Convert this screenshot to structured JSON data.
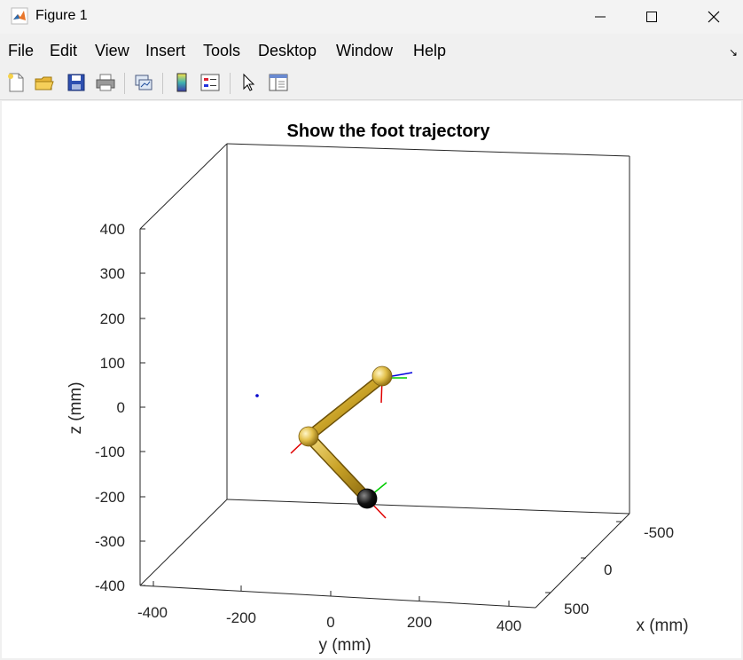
{
  "window": {
    "title": "Figure 1",
    "icon": "matlab-logo-icon",
    "controls": [
      "minimize-icon",
      "maximize-icon",
      "close-icon"
    ]
  },
  "menu": {
    "items": [
      "File",
      "Edit",
      "View",
      "Insert",
      "Tools",
      "Desktop",
      "Window",
      "Help"
    ],
    "overflow_icon": "dock-arrow-icon"
  },
  "toolbar": {
    "buttons": [
      "new-figure-icon",
      "open-file-icon",
      "save-icon",
      "print-icon",
      "link-plot-icon",
      "insert-colorbar-icon",
      "insert-legend-icon",
      "edit-plot-icon",
      "property-inspector-icon"
    ]
  },
  "chart_data": {
    "type": "3d-line",
    "title": "Show the foot trajectory",
    "xlabel": "x (mm)",
    "ylabel": "y (mm)",
    "zlabel": "z (mm)",
    "x_ticks": [
      "-500",
      "0",
      "500"
    ],
    "y_ticks": [
      "-400",
      "-200",
      "0",
      "200",
      "400"
    ],
    "z_ticks": [
      "400",
      "300",
      "200",
      "100",
      "0",
      "-100",
      "-200",
      "-300",
      "-400"
    ],
    "xlim": [
      -500,
      500
    ],
    "ylim": [
      -400,
      400
    ],
    "zlim": [
      -400,
      400
    ],
    "grid": false,
    "box": true,
    "colors": {
      "link": "#c9a227",
      "joint": "#e3c04a",
      "foot": "#111111",
      "frame_x": "#e00000",
      "frame_y": "#00cc00",
      "frame_z": "#0000dd",
      "trajectory_point": "#0000cc"
    }
  }
}
